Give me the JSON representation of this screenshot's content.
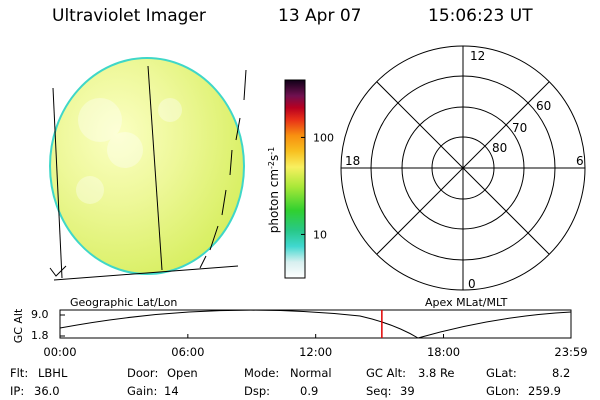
{
  "header": {
    "title": "Ultraviolet Imager",
    "date": "13 Apr 07",
    "time": "15:06:23 UT"
  },
  "colorbar": {
    "label_main": "photon cm",
    "label_exp1": "-2",
    "label_s": "s",
    "label_exp2": "-1",
    "ticks": [
      {
        "label": "100",
        "frac": 0.71
      },
      {
        "label": "10",
        "frac": 0.22
      }
    ]
  },
  "polar_plot": {
    "mlt_labels": {
      "top": "12",
      "bottom": "0",
      "left": "18",
      "right": "6"
    },
    "lat_labels": [
      "60",
      "70",
      "80"
    ]
  },
  "map_captions": {
    "left": "Geographic Lat/Lon",
    "right": "Apex MLat/MLT"
  },
  "altitude_plot": {
    "ylabel": "GC Alt",
    "ytick_top": "9.0",
    "ytick_bottom": "1.8",
    "x_ticks": [
      "00:00",
      "06:00",
      "12:00",
      "18:00",
      "23:59"
    ],
    "current_time_hours": 15.106
  },
  "info": {
    "row1": [
      {
        "k": "Flt:",
        "v": "LBHL"
      },
      {
        "k": "Door:",
        "v": "Open"
      },
      {
        "k": "Mode:",
        "v": "Normal"
      },
      {
        "k": "GC Alt:",
        "v": "3.8 Re"
      },
      {
        "k": "GLat:",
        "v": "8.2"
      }
    ],
    "row2": [
      {
        "k": "IP:",
        "v": "36.0"
      },
      {
        "k": "Gain:",
        "v": "14"
      },
      {
        "k": "Dsp:",
        "v": "0.9"
      },
      {
        "k": "Seq:",
        "v": "39"
      },
      {
        "k": "GLon:",
        "v": "259.9"
      }
    ]
  },
  "colors": {
    "disk_fill": "#e4f37a",
    "disk_edge": "#3fd7c8",
    "marker": "#e00000"
  }
}
